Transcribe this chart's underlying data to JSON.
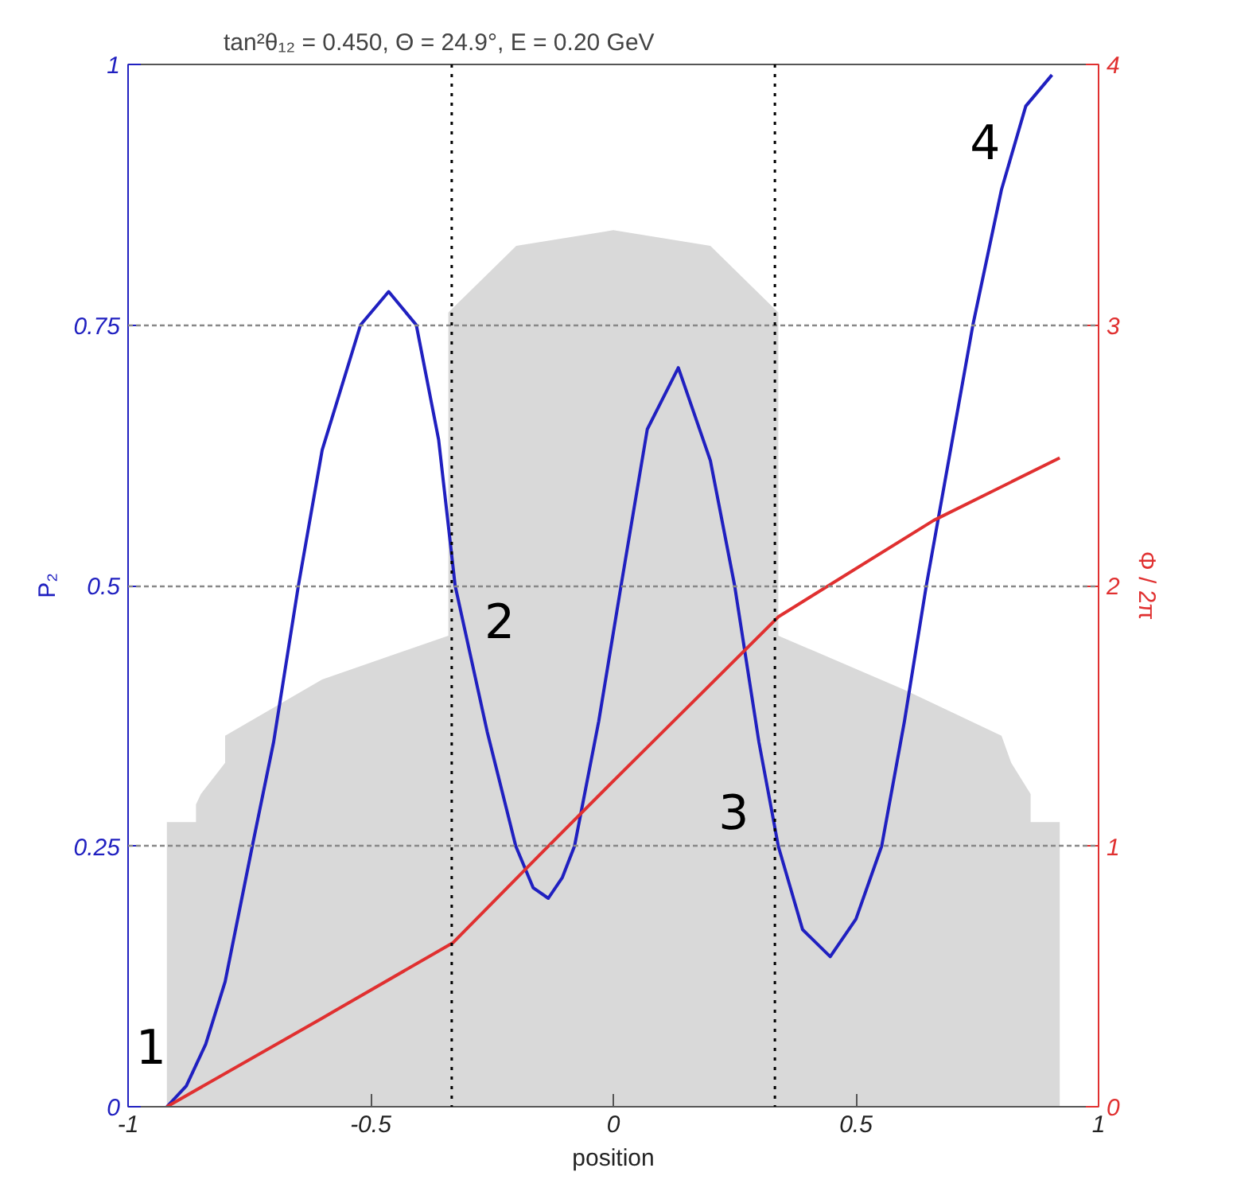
{
  "chart_data": {
    "type": "line",
    "title": "tan²θ₁₂ = 0.450,  Θ = 24.9°,  E = 0.20 GeV",
    "xlabel": "position",
    "ylabel": "P₂",
    "y2label": "Φ / 2π",
    "xlim": [
      -1,
      1
    ],
    "xticks": [
      -1,
      -0.5,
      0,
      0.5,
      1
    ],
    "ylim": [
      0,
      1
    ],
    "yticks": [
      0,
      0.25,
      0.5,
      0.75,
      1
    ],
    "y2lim": [
      0,
      4
    ],
    "y2ticks": [
      0,
      1,
      2,
      3,
      4
    ],
    "grid": "y",
    "marker": "none",
    "line_style": "solid",
    "series": [
      {
        "type": "area",
        "color": "#d9d9d9",
        "x": [
          -0.92,
          -0.86,
          -0.86,
          -0.85,
          -0.8,
          -0.8,
          -0.6,
          -0.34,
          -0.34,
          -0.2,
          0,
          0.2,
          0.34,
          0.34,
          0.6,
          0.8,
          0.82,
          0.86,
          0.86,
          0.92
        ],
        "values": [
          0.273,
          0.273,
          0.29,
          0.3,
          0.33,
          0.356,
          0.41,
          0.452,
          0.762,
          0.826,
          0.841,
          0.826,
          0.762,
          0.452,
          0.4,
          0.356,
          0.33,
          0.3,
          0.273,
          0.273
        ]
      },
      {
        "color": "#2020c0",
        "x": [
          -0.92,
          -0.88,
          -0.84,
          -0.8,
          -0.744,
          -0.7,
          -0.649,
          -0.6,
          -0.521,
          -0.463,
          -0.406,
          -0.36,
          -0.326,
          -0.26,
          -0.201,
          -0.165,
          -0.134,
          -0.105,
          -0.08,
          -0.03,
          0.016,
          0.07,
          0.134,
          0.2,
          0.25,
          0.3,
          0.34,
          0.39,
          0.447,
          0.5,
          0.553,
          0.6,
          0.645,
          0.741,
          0.8,
          0.85,
          0.904
        ],
        "values": [
          0,
          0.02,
          0.06,
          0.12,
          0.25,
          0.35,
          0.5,
          0.63,
          0.75,
          0.782,
          0.75,
          0.64,
          0.5,
          0.36,
          0.25,
          0.21,
          0.2,
          0.22,
          0.25,
          0.37,
          0.5,
          0.65,
          0.709,
          0.62,
          0.5,
          0.35,
          0.25,
          0.17,
          0.144,
          0.18,
          0.25,
          0.37,
          0.5,
          0.75,
          0.88,
          0.96,
          0.99
        ]
      },
      {
        "color": "#e03030",
        "axis": "y2",
        "x": [
          -0.92,
          -0.6,
          -0.33,
          -0.15,
          0,
          0.2,
          0.34,
          0.66,
          0.92
        ],
        "values": [
          0,
          0.34,
          0.63,
          0.97,
          1.25,
          1.62,
          1.88,
          2.25,
          2.49
        ]
      }
    ],
    "ref_lines": [
      {
        "axis": "x",
        "value": -0.333,
        "color": "#000000",
        "line_style": "dotted"
      },
      {
        "axis": "x",
        "value": 0.333,
        "color": "#000000",
        "line_style": "dotted"
      }
    ],
    "annotations": [
      {
        "text": "1",
        "x": -0.92,
        "y": 0
      },
      {
        "text": "2",
        "x": -0.326,
        "y": 0.5
      },
      {
        "text": "3",
        "x": 0.34,
        "y": 0.25
      },
      {
        "text": "4",
        "x": 0.904,
        "y": 0.99
      }
    ]
  }
}
